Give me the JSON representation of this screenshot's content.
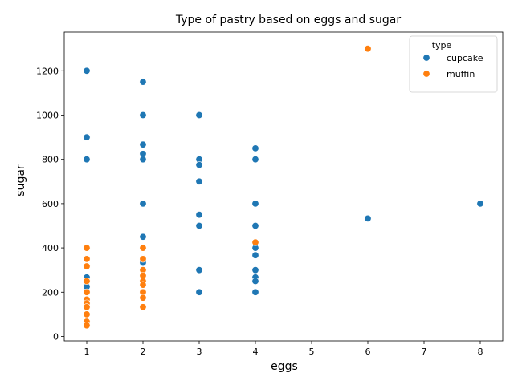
{
  "chart_data": {
    "type": "scatter",
    "title": "Type of pastry based on eggs and sugar",
    "xlabel": "eggs",
    "ylabel": "sugar",
    "xlim": [
      0.6,
      8.4
    ],
    "ylim": [
      -20,
      1375
    ],
    "xticks": [
      1,
      2,
      3,
      4,
      5,
      6,
      7,
      8
    ],
    "yticks": [
      0,
      200,
      400,
      600,
      800,
      1000,
      1200
    ],
    "grid": false,
    "legend": {
      "title": "type",
      "placement": "top-right"
    },
    "series": [
      {
        "name": "cupcake",
        "color": "#1f77b4",
        "points": [
          [
            1,
            1200
          ],
          [
            1,
            900
          ],
          [
            1,
            800
          ],
          [
            1,
            267
          ],
          [
            1,
            225
          ],
          [
            2,
            1150
          ],
          [
            2,
            1000
          ],
          [
            2,
            867
          ],
          [
            2,
            825
          ],
          [
            2,
            800
          ],
          [
            2,
            600
          ],
          [
            2,
            450
          ],
          [
            2,
            350
          ],
          [
            2,
            333
          ],
          [
            3,
            1000
          ],
          [
            3,
            800
          ],
          [
            3,
            775
          ],
          [
            3,
            700
          ],
          [
            3,
            550
          ],
          [
            3,
            500
          ],
          [
            3,
            300
          ],
          [
            3,
            200
          ],
          [
            4,
            850
          ],
          [
            4,
            800
          ],
          [
            4,
            600
          ],
          [
            4,
            500
          ],
          [
            4,
            400
          ],
          [
            4,
            367
          ],
          [
            4,
            300
          ],
          [
            4,
            267
          ],
          [
            4,
            250
          ],
          [
            4,
            200
          ],
          [
            6,
            533
          ],
          [
            8,
            600
          ]
        ]
      },
      {
        "name": "muffin",
        "color": "#ff7f0e",
        "points": [
          [
            1,
            400
          ],
          [
            1,
            350
          ],
          [
            1,
            317
          ],
          [
            1,
            250
          ],
          [
            1,
            200
          ],
          [
            1,
            167
          ],
          [
            1,
            150
          ],
          [
            1,
            133
          ],
          [
            1,
            100
          ],
          [
            1,
            67
          ],
          [
            1,
            50
          ],
          [
            2,
            400
          ],
          [
            2,
            350
          ],
          [
            2,
            300
          ],
          [
            2,
            275
          ],
          [
            2,
            250
          ],
          [
            2,
            233
          ],
          [
            2,
            200
          ],
          [
            2,
            175
          ],
          [
            2,
            133
          ],
          [
            4,
            425
          ],
          [
            6,
            1300
          ]
        ]
      }
    ]
  }
}
